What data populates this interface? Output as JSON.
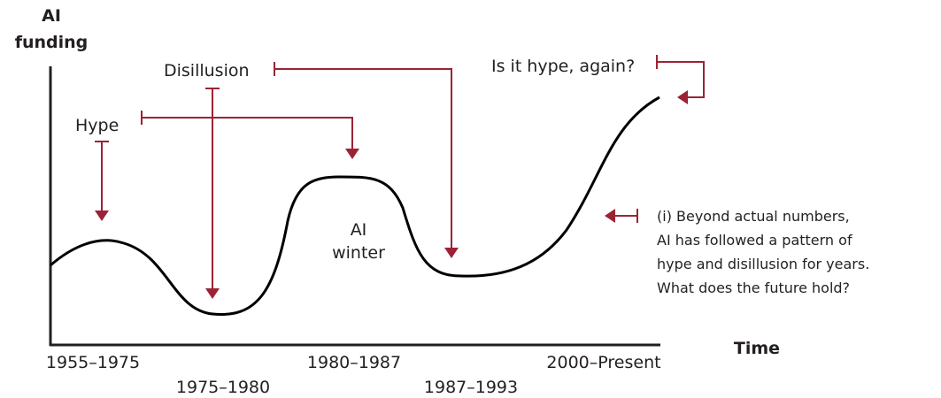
{
  "axes": {
    "y_label": [
      "AI",
      "funding"
    ],
    "x_label": "Time"
  },
  "periods": [
    "1955–1975",
    "1975–1980",
    "1980–1987",
    "1987–1993",
    "2000–Present"
  ],
  "annotations": {
    "hype": "Hype",
    "disillusion": "Disillusion",
    "hype_again": "Is it hype, again?",
    "winter": [
      "AI",
      "winter"
    ]
  },
  "note": [
    "(i) Beyond actual numbers,",
    "AI has followed a pattern of",
    "hype and disillusion for years.",
    "What does the future hold?"
  ]
}
